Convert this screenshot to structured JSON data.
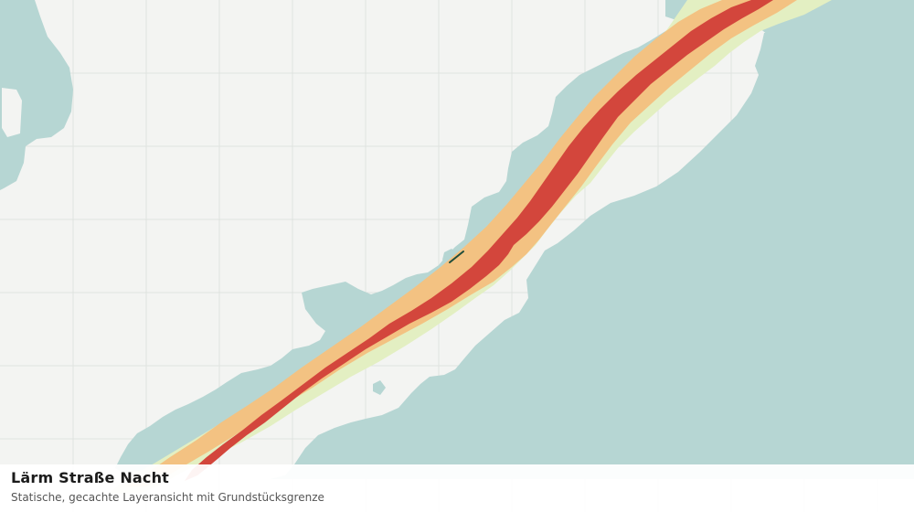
{
  "map": {
    "layer_name": "Lärm Straße Nacht",
    "description": "Statische, gecachte Layeransicht mit Grundstücksgrenze",
    "colors": {
      "background": "#f3f4f2",
      "grid": "#dfe3e0",
      "water": "#b6d6d3",
      "noise_band_outer": "#e3efc2",
      "noise_band_middle": "#f3c282",
      "noise_band_core": "#d3463c",
      "parcel_boundary": "#1e4d3a"
    },
    "noise_bands": [
      "outer",
      "middle",
      "core"
    ],
    "icons": {
      "parcel": "parcel-boundary-marker"
    }
  }
}
